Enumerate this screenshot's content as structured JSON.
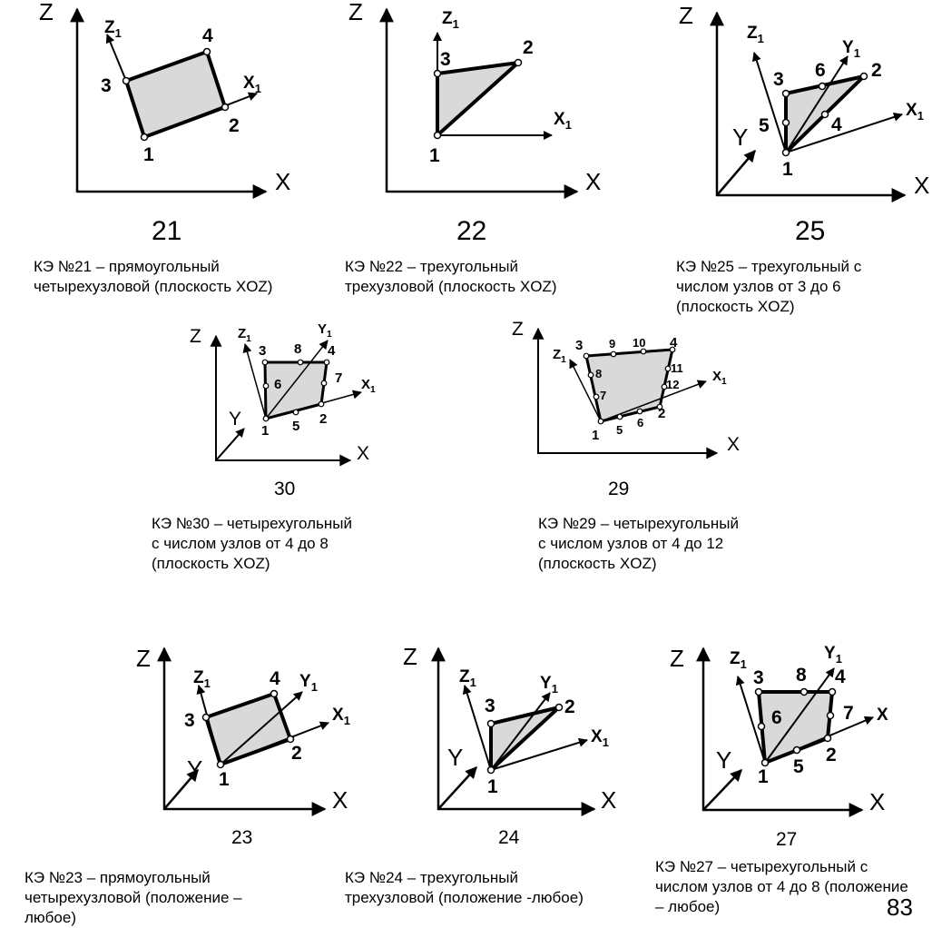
{
  "figures": [
    {
      "id": "21",
      "number": "21",
      "axes": {
        "z": "Z",
        "x": "X"
      },
      "local_axes": {
        "z1": "Z",
        "x1": "X",
        "sub": "1"
      },
      "nodes": [
        "1",
        "2",
        "3",
        "4"
      ],
      "caption": [
        "КЭ №21 – прямоугольный",
        "четырехузловой (плоскость XOZ)"
      ]
    },
    {
      "id": "22",
      "number": "22",
      "axes": {
        "z": "Z",
        "x": "X"
      },
      "local_axes": {
        "z1": "Z",
        "x1": "X",
        "sub": "1"
      },
      "nodes": [
        "1",
        "2",
        "3"
      ],
      "caption": [
        "КЭ №22 – трехугольный",
        "трехузловой (плоскость XOZ)"
      ]
    },
    {
      "id": "25",
      "number": "25",
      "axes": {
        "z": "Z",
        "x": "X",
        "y": "Y"
      },
      "local_axes": {
        "z1": "Z",
        "x1": "X",
        "y1": "Y",
        "sub": "1"
      },
      "nodes": [
        "1",
        "2",
        "3",
        "4",
        "5",
        "6"
      ],
      "caption": [
        "КЭ №25 – трехугольный с",
        "числом узлов от 3 до 6",
        "(плоскость XOZ)"
      ]
    },
    {
      "id": "30",
      "number": "30",
      "axes": {
        "z": "Z",
        "x": "X",
        "y": "Y"
      },
      "local_axes": {
        "z1": "Z",
        "x1": "X",
        "y1": "Y",
        "sub": "1"
      },
      "nodes": [
        "1",
        "2",
        "3",
        "4",
        "5",
        "6",
        "7",
        "8"
      ],
      "caption": [
        "КЭ №30 – четырехугольный",
        "с числом узлов от 4 до 8",
        "(плоскость XOZ)"
      ]
    },
    {
      "id": "29",
      "number": "29",
      "axes": {
        "z": "Z",
        "x": "X"
      },
      "local_axes": {
        "z1": "Z",
        "x1": "X",
        "sub": "1"
      },
      "nodes": [
        "1",
        "2",
        "3",
        "4",
        "5",
        "6",
        "7",
        "8",
        "9",
        "10",
        "11",
        "12"
      ],
      "caption": [
        "КЭ №29 – четырехугольный",
        "с числом узлов от 4 до 12",
        "(плоскость XOZ)"
      ]
    },
    {
      "id": "23",
      "number": "23",
      "axes": {
        "z": "Z",
        "x": "X",
        "y": "Y"
      },
      "local_axes": {
        "z1": "Z",
        "x1": "X",
        "y1": "Y",
        "sub": "1"
      },
      "nodes": [
        "1",
        "2",
        "3",
        "4"
      ],
      "caption": [
        "КЭ №23 – прямоугольный",
        "четырехузловой (положение –",
        "любое)"
      ]
    },
    {
      "id": "24",
      "number": "24",
      "axes": {
        "z": "Z",
        "x": "X",
        "y": "Y"
      },
      "local_axes": {
        "z1": "Z",
        "x1": "X",
        "y1": "Y",
        "sub": "1"
      },
      "nodes": [
        "1",
        "2",
        "3"
      ],
      "caption": [
        "КЭ №24 – трехугольный",
        "трехузловой (положение -любое)"
      ]
    },
    {
      "id": "27",
      "number": "27",
      "axes": {
        "z": "Z",
        "x": "X",
        "y": "Y"
      },
      "local_axes": {
        "z1": "Z",
        "x1": "X",
        "y1": "Y",
        "sub": "1"
      },
      "nodes": [
        "1",
        "2",
        "3",
        "4",
        "5",
        "6",
        "7",
        "8"
      ],
      "caption": [
        "КЭ №27 – четырехугольный с",
        "числом узлов от 4 до 8 (положение",
        "– любое)"
      ]
    }
  ],
  "page_number": "83",
  "colors": {
    "element_fill": "#d9d9d9",
    "line": "#000000",
    "background": "#ffffff"
  }
}
